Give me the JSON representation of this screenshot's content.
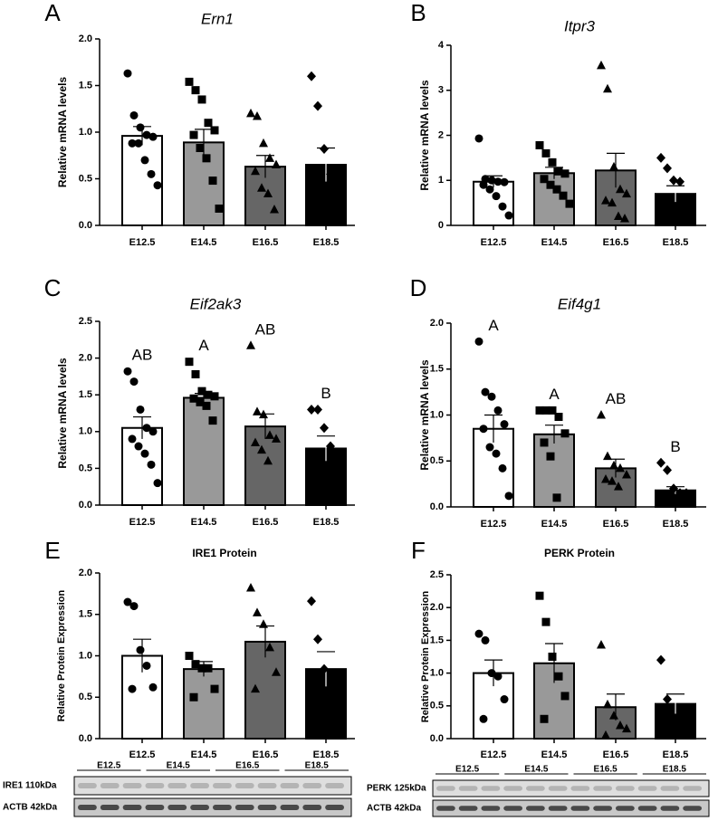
{
  "chart_data": [
    {
      "type": "bar",
      "panel": "A",
      "title": "Ern1",
      "ylabel": "Relative mRNA levels",
      "categories": [
        "E12.5",
        "E14.5",
        "E16.5",
        "E18.5"
      ],
      "colors": [
        "#ffffff",
        "#999999",
        "#666666",
        "#000000"
      ],
      "markers": [
        "circle",
        "square",
        "triangle",
        "diamond"
      ],
      "values": [
        0.96,
        0.89,
        0.63,
        0.65
      ],
      "errors": [
        0.1,
        0.14,
        0.12,
        0.18
      ],
      "points": [
        [
          1.63,
          1.18,
          1.05,
          0.97,
          0.95,
          0.88,
          0.88,
          0.7,
          0.55,
          0.43
        ],
        [
          1.54,
          1.45,
          1.35,
          1.1,
          1.02,
          0.97,
          0.83,
          0.72,
          0.48,
          0.18
        ],
        [
          1.2,
          1.17,
          0.88,
          0.72,
          0.65,
          0.58,
          0.4,
          0.34,
          0.17
        ],
        [
          1.6,
          1.28,
          0.82,
          0.55
        ]
      ],
      "ylim": [
        0,
        2
      ],
      "yticks": [
        {
          "value": 0,
          "label": "0.0"
        },
        {
          "value": 0.5,
          "label": "0.5"
        },
        {
          "value": 1,
          "label": "1.0"
        },
        {
          "value": 1.5,
          "label": "1.5"
        },
        {
          "value": 2,
          "label": "2.0"
        }
      ]
    },
    {
      "type": "bar",
      "panel": "B",
      "title": "Itpr3",
      "ylabel": "Relative mRNA levels",
      "categories": [
        "E12.5",
        "E14.5",
        "E16.5",
        "E18.5"
      ],
      "colors": [
        "#ffffff",
        "#999999",
        "#666666",
        "#000000"
      ],
      "markers": [
        "circle",
        "square",
        "triangle",
        "diamond"
      ],
      "values": [
        0.97,
        1.16,
        1.22,
        0.7
      ],
      "errors": [
        0.13,
        0.13,
        0.38,
        0.18
      ],
      "points": [
        [
          1.93,
          1.03,
          1.0,
          0.97,
          0.96,
          0.9,
          0.8,
          0.65,
          0.42,
          0.22
        ],
        [
          1.78,
          1.6,
          1.4,
          1.2,
          1.15,
          1.03,
          0.9,
          0.8,
          0.66,
          0.48
        ],
        [
          3.55,
          3.03,
          1.3,
          0.8,
          0.7,
          0.55,
          0.5,
          0.2,
          0.15
        ],
        [
          1.5,
          1.27,
          1.0,
          0.97,
          0.55
        ]
      ],
      "ylim": [
        0,
        4
      ],
      "yticks": [
        0,
        1,
        2,
        3,
        4
      ]
    },
    {
      "type": "bar",
      "panel": "C",
      "title": "Eif2ak3",
      "ylabel": "Relative mRNA levels",
      "categories": [
        "E12.5",
        "E14.5",
        "E16.5",
        "E18.5"
      ],
      "colors": [
        "#ffffff",
        "#999999",
        "#666666",
        "#000000"
      ],
      "markers": [
        "circle",
        "square",
        "triangle",
        "diamond"
      ],
      "values": [
        1.05,
        1.46,
        1.07,
        0.77
      ],
      "errors": [
        0.15,
        0.06,
        0.17,
        0.17
      ],
      "letters": [
        "AB",
        "A",
        "AB",
        "B"
      ],
      "points": [
        [
          1.82,
          1.68,
          1.3,
          1.05,
          1.0,
          0.9,
          0.8,
          0.7,
          0.55,
          0.3
        ],
        [
          1.95,
          1.78,
          1.55,
          1.5,
          1.48,
          1.45,
          1.4,
          1.35,
          1.15
        ],
        [
          2.17,
          1.27,
          1.23,
          0.95,
          0.9,
          0.85,
          0.75,
          0.6
        ],
        [
          1.3,
          1.3,
          1.05,
          0.8,
          0.65,
          0.55
        ]
      ],
      "ylim": [
        0,
        2.5
      ],
      "yticks": [
        {
          "value": 0,
          "label": "0.0"
        },
        {
          "value": 0.5,
          "label": "0.5"
        },
        {
          "value": 1,
          "label": "1.0"
        },
        {
          "value": 1.5,
          "label": "1.5"
        },
        {
          "value": 2,
          "label": "2.0"
        },
        {
          "value": 2.5,
          "label": "2.5"
        }
      ]
    },
    {
      "type": "bar",
      "panel": "D",
      "title": "Eif4g1",
      "ylabel": "Relative mRNA levels",
      "categories": [
        "E12.5",
        "E14.5",
        "E16.5",
        "E18.5"
      ],
      "colors": [
        "#ffffff",
        "#999999",
        "#666666",
        "#000000"
      ],
      "markers": [
        "circle",
        "square",
        "triangle",
        "diamond"
      ],
      "values": [
        0.85,
        0.79,
        0.42,
        0.18
      ],
      "errors": [
        0.15,
        0.1,
        0.1,
        0.04
      ],
      "letters": [
        "A",
        "A",
        "AB",
        "B"
      ],
      "points": [
        [
          1.8,
          1.25,
          1.2,
          1.05,
          0.9,
          0.85,
          0.65,
          0.58,
          0.42,
          0.12
        ],
        [
          1.05,
          1.05,
          1.05,
          0.98,
          0.8,
          0.7,
          0.55,
          0.1
        ],
        [
          1.0,
          0.55,
          0.45,
          0.42,
          0.35,
          0.3,
          0.28,
          0.22
        ],
        [
          0.48,
          0.4,
          0.2,
          0.15,
          0.15,
          0.13,
          0.1
        ]
      ],
      "ylim": [
        0,
        2
      ],
      "yticks": [
        {
          "value": 0,
          "label": "0.0"
        },
        {
          "value": 0.5,
          "label": "0.5"
        },
        {
          "value": 1,
          "label": "1.0"
        },
        {
          "value": 1.5,
          "label": "1.5"
        },
        {
          "value": 2,
          "label": "2.0"
        }
      ]
    },
    {
      "type": "bar",
      "panel": "E",
      "title": "IRE1 Protein",
      "ylabel": "Relative Protein Expression",
      "categories": [
        "E12.5",
        "E14.5",
        "E16.5",
        "E18.5"
      ],
      "colors": [
        "#ffffff",
        "#999999",
        "#666666",
        "#000000"
      ],
      "markers": [
        "circle",
        "square",
        "triangle",
        "diamond"
      ],
      "values": [
        1.0,
        0.84,
        1.17,
        0.84
      ],
      "errors": [
        0.2,
        0.09,
        0.19,
        0.21
      ],
      "points": [
        [
          1.65,
          1.6,
          1.07,
          0.88,
          0.62,
          0.6
        ],
        [
          1.0,
          0.9,
          0.85,
          0.85,
          0.6,
          0.5
        ],
        [
          1.82,
          1.52,
          1.38,
          1.1,
          0.8,
          0.6
        ],
        [
          1.66,
          1.2,
          0.84
        ]
      ],
      "ylim": [
        0,
        2
      ],
      "yticks": [
        {
          "value": 0,
          "label": "0.0"
        },
        {
          "value": 0.5,
          "label": "0.5"
        },
        {
          "value": 1,
          "label": "1.0"
        },
        {
          "value": 1.5,
          "label": "1.5"
        },
        {
          "value": 2,
          "label": "2.0"
        }
      ],
      "blot": {
        "lanes": [
          "E12.5",
          "E14.5",
          "E16.5",
          "E18.5"
        ],
        "rows": [
          "IRE1 110kDa",
          "ACTB 42kDa"
        ]
      }
    },
    {
      "type": "bar",
      "panel": "F",
      "title": "PERK Protein",
      "ylabel": "Relative Protein Expression",
      "categories": [
        "E12.5",
        "E14.5",
        "E16.5",
        "E18.5"
      ],
      "colors": [
        "#ffffff",
        "#999999",
        "#666666",
        "#000000"
      ],
      "markers": [
        "circle",
        "square",
        "triangle",
        "diamond"
      ],
      "values": [
        1.0,
        1.15,
        0.48,
        0.53
      ],
      "errors": [
        0.2,
        0.3,
        0.2,
        0.15
      ],
      "points": [
        [
          1.6,
          1.5,
          1.0,
          0.95,
          0.6,
          0.3
        ],
        [
          2.18,
          1.78,
          1.25,
          0.95,
          0.65,
          0.3
        ],
        [
          1.43,
          0.52,
          0.35,
          0.2,
          0.15,
          0.05
        ],
        [
          1.2,
          0.6,
          0.28
        ]
      ],
      "ylim": [
        0,
        2.5
      ],
      "yticks": [
        {
          "value": 0,
          "label": "0.0"
        },
        {
          "value": 0.5,
          "label": "0.5"
        },
        {
          "value": 1,
          "label": "1.0"
        },
        {
          "value": 1.5,
          "label": "1.5"
        },
        {
          "value": 2,
          "label": "2.0"
        },
        {
          "value": 2.5,
          "label": "2.5"
        }
      ],
      "blot": {
        "lanes": [
          "E12.5",
          "E14.5",
          "E16.5",
          "E18.5"
        ],
        "rows": [
          "PERK 125kDa",
          "ACTB 42kDa"
        ]
      }
    }
  ]
}
